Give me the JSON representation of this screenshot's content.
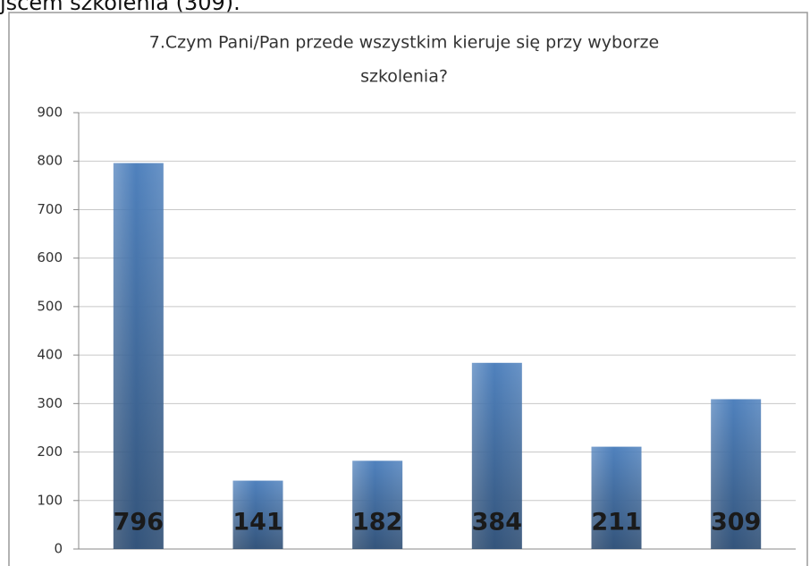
{
  "header_text": "jscem szkolenia (309).",
  "chart_data": {
    "type": "bar",
    "title": "7.Czym Pani/Pan przede wszystkim kieruje się przy wyborze",
    "title_line2": "szkolenia?",
    "categories": [
      null,
      null,
      null,
      null,
      null,
      null
    ],
    "values": [
      796,
      141,
      182,
      384,
      211,
      309
    ],
    "color": "#4f81bd",
    "ylim": [
      0,
      900
    ],
    "yticks": [
      0,
      100,
      200,
      300,
      400,
      500,
      600,
      700,
      800,
      900
    ],
    "grid": true,
    "data_labels": true
  }
}
